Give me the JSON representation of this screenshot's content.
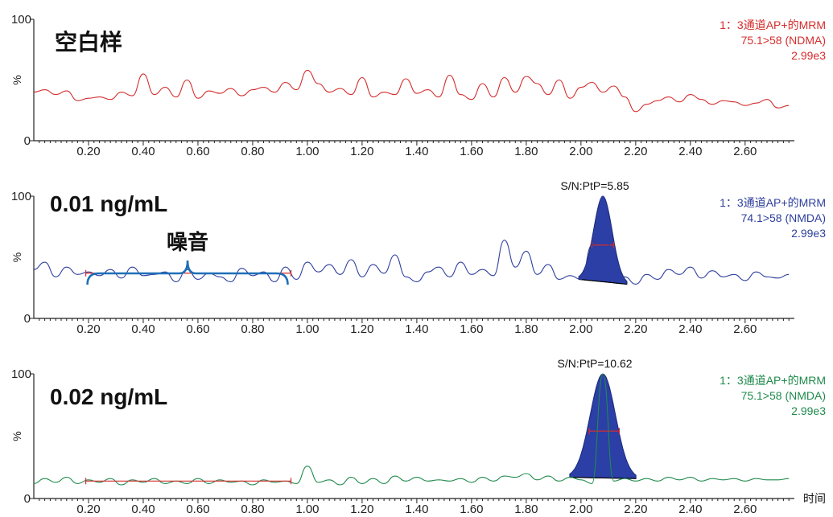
{
  "x_axis_title": "时间",
  "chart_data": [
    {
      "type": "line",
      "title": "空白样",
      "color": "#d42d2d",
      "ylabel": "%",
      "y_ticks": [
        "100",
        "0"
      ],
      "ylim": [
        0,
        100
      ],
      "xlim": [
        0,
        2.78
      ],
      "x_tick_labels": [
        "0.20",
        "0.40",
        "0.60",
        "0.80",
        "1.00",
        "1.20",
        "1.40",
        "1.60",
        "1.80",
        "2.00",
        "2.20",
        "2.40",
        "2.60"
      ],
      "info": [
        "1：3通道AP+的MRM",
        "75.1>58 (NDMA)",
        "2.99e3"
      ],
      "series": [
        {
          "x": [
            0.0,
            0.04,
            0.08,
            0.12,
            0.16,
            0.2,
            0.24,
            0.28,
            0.32,
            0.36,
            0.4,
            0.44,
            0.48,
            0.52,
            0.56,
            0.6,
            0.64,
            0.68,
            0.72,
            0.76,
            0.8,
            0.84,
            0.88,
            0.92,
            0.96,
            1.0,
            1.04,
            1.08,
            1.12,
            1.16,
            1.2,
            1.24,
            1.28,
            1.32,
            1.36,
            1.4,
            1.44,
            1.48,
            1.52,
            1.56,
            1.6,
            1.64,
            1.68,
            1.72,
            1.76,
            1.8,
            1.84,
            1.88,
            1.92,
            1.96,
            2.0,
            2.04,
            2.08,
            2.12,
            2.16,
            2.2,
            2.24,
            2.28,
            2.32,
            2.36,
            2.4,
            2.44,
            2.48,
            2.52,
            2.56,
            2.6,
            2.64,
            2.68,
            2.72,
            2.76
          ],
          "y": [
            40,
            42,
            38,
            41,
            33,
            35,
            36,
            34,
            40,
            37,
            55,
            38,
            44,
            36,
            50,
            35,
            41,
            39,
            43,
            37,
            42,
            44,
            40,
            48,
            42,
            58,
            47,
            40,
            43,
            38,
            52,
            36,
            40,
            38,
            51,
            39,
            42,
            36,
            54,
            38,
            34,
            47,
            36,
            52,
            40,
            53,
            47,
            38,
            50,
            35,
            44,
            48,
            40,
            45,
            36,
            24,
            30,
            33,
            36,
            32,
            38,
            34,
            30,
            33,
            32,
            29,
            31,
            34,
            27,
            29
          ]
        }
      ]
    },
    {
      "type": "line",
      "title": "0.01 ng/mL",
      "color": "#2e3f9e",
      "ylabel": "%",
      "y_ticks": [
        "100",
        "0"
      ],
      "ylim": [
        0,
        100
      ],
      "xlim": [
        0,
        2.78
      ],
      "x_tick_labels": [
        "0.20",
        "0.40",
        "0.60",
        "0.80",
        "1.00",
        "1.20",
        "1.40",
        "1.60",
        "1.80",
        "2.00",
        "2.20",
        "2.40",
        "2.60"
      ],
      "info": [
        "1：3通道AP+的MRM",
        "74.1>58 (NMDA)",
        "2.99e3"
      ],
      "annotation_text": "噪音",
      "sn_label": "S/N:PtP=5.85",
      "noise_range": [
        0.19,
        0.94
      ],
      "peak": {
        "rt": 2.08,
        "height": 100,
        "width_range": [
          2.04,
          2.12
        ]
      },
      "series": [
        {
          "x": [
            0.0,
            0.04,
            0.08,
            0.12,
            0.16,
            0.2,
            0.24,
            0.28,
            0.32,
            0.36,
            0.4,
            0.44,
            0.48,
            0.52,
            0.56,
            0.6,
            0.64,
            0.68,
            0.72,
            0.76,
            0.8,
            0.84,
            0.88,
            0.92,
            0.96,
            1.0,
            1.04,
            1.08,
            1.12,
            1.16,
            1.2,
            1.24,
            1.28,
            1.32,
            1.36,
            1.4,
            1.44,
            1.48,
            1.52,
            1.56,
            1.6,
            1.64,
            1.68,
            1.72,
            1.76,
            1.8,
            1.84,
            1.88,
            1.92,
            1.96,
            2.0,
            2.04,
            2.08,
            2.12,
            2.16,
            2.2,
            2.24,
            2.28,
            2.32,
            2.36,
            2.4,
            2.44,
            2.48,
            2.52,
            2.56,
            2.6,
            2.64,
            2.68,
            2.72,
            2.76
          ],
          "y": [
            40,
            46,
            34,
            42,
            36,
            38,
            35,
            40,
            33,
            42,
            35,
            36,
            38,
            30,
            40,
            32,
            37,
            34,
            30,
            41,
            35,
            38,
            30,
            42,
            32,
            46,
            38,
            44,
            36,
            48,
            34,
            44,
            37,
            52,
            34,
            30,
            38,
            42,
            34,
            46,
            36,
            40,
            35,
            64,
            42,
            55,
            36,
            44,
            32,
            35,
            32,
            60,
            100,
            40,
            34,
            28,
            36,
            32,
            40,
            36,
            42,
            33,
            39,
            34,
            36,
            31,
            38,
            34,
            33,
            36
          ]
        }
      ]
    },
    {
      "type": "line",
      "title": "0.02 ng/mL",
      "color": "#1f8a4c",
      "ylabel": "%",
      "y_ticks": [
        "100",
        "0"
      ],
      "ylim": [
        0,
        100
      ],
      "xlim": [
        0,
        2.78
      ],
      "x_tick_labels": [
        "0.20",
        "0.40",
        "0.60",
        "0.80",
        "1.00",
        "1.20",
        "1.40",
        "1.60",
        "1.80",
        "2.00",
        "2.20",
        "2.40",
        "2.60"
      ],
      "info": [
        "1：3通道AP+的MRM",
        "75.1>58 (NMDA)",
        "2.99e3"
      ],
      "sn_label": "S/N:PtP=10.62",
      "noise_range": [
        0.19,
        0.94
      ],
      "peak": {
        "rt": 2.08,
        "height": 100,
        "width_range": [
          2.03,
          2.14
        ]
      },
      "series": [
        {
          "x": [
            0.0,
            0.04,
            0.08,
            0.12,
            0.16,
            0.2,
            0.24,
            0.28,
            0.32,
            0.36,
            0.4,
            0.44,
            0.48,
            0.52,
            0.56,
            0.6,
            0.64,
            0.68,
            0.72,
            0.76,
            0.8,
            0.84,
            0.88,
            0.92,
            0.96,
            1.0,
            1.04,
            1.08,
            1.12,
            1.16,
            1.2,
            1.24,
            1.28,
            1.32,
            1.36,
            1.4,
            1.44,
            1.48,
            1.52,
            1.56,
            1.6,
            1.64,
            1.68,
            1.72,
            1.76,
            1.8,
            1.84,
            1.88,
            1.92,
            1.96,
            2.0,
            2.04,
            2.08,
            2.12,
            2.16,
            2.2,
            2.24,
            2.28,
            2.32,
            2.36,
            2.4,
            2.44,
            2.48,
            2.52,
            2.56,
            2.6,
            2.64,
            2.68,
            2.72,
            2.76
          ],
          "y": [
            12,
            16,
            13,
            17,
            12,
            15,
            13,
            16,
            11,
            15,
            13,
            16,
            12,
            14,
            12,
            16,
            12,
            15,
            13,
            14,
            11,
            15,
            13,
            14,
            12,
            26,
            13,
            15,
            11,
            17,
            12,
            16,
            12,
            18,
            14,
            17,
            14,
            15,
            14,
            16,
            13,
            17,
            14,
            18,
            17,
            20,
            15,
            18,
            14,
            17,
            15,
            12,
            100,
            14,
            16,
            14,
            16,
            14,
            17,
            15,
            17,
            14,
            16,
            15,
            16,
            14,
            16,
            15,
            15,
            16
          ]
        }
      ]
    }
  ]
}
